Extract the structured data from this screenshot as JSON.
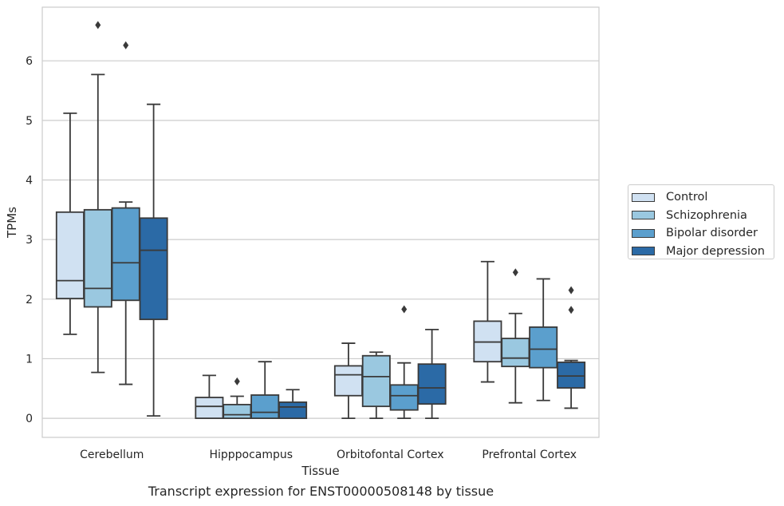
{
  "caption": "Transcript expression for ENST00000508148 by tissue",
  "chart_data": {
    "type": "box",
    "xlabel": "Tissue",
    "ylabel": "TPMs",
    "ylim": [
      -0.32,
      6.9
    ],
    "yticks": [
      0,
      1,
      2,
      3,
      4,
      5,
      6
    ],
    "grid": true,
    "legend_position": "right",
    "categories": [
      "Cerebellum",
      "Hipppocampus",
      "Orbitofontal Cortex",
      "Prefrontal Cortex"
    ],
    "series": [
      {
        "name": "Control",
        "color": "#d0e1f2",
        "boxes": [
          {
            "whislo": 1.41,
            "q1": 2.01,
            "med": 2.31,
            "q3": 3.46,
            "whishi": 5.12,
            "fliers": []
          },
          {
            "whislo": 0.0,
            "q1": 0.0,
            "med": 0.2,
            "q3": 0.35,
            "whishi": 0.72,
            "fliers": []
          },
          {
            "whislo": 0.0,
            "q1": 0.38,
            "med": 0.73,
            "q3": 0.88,
            "whishi": 1.26,
            "fliers": []
          },
          {
            "whislo": 0.61,
            "q1": 0.95,
            "med": 1.28,
            "q3": 1.63,
            "whishi": 2.63,
            "fliers": []
          }
        ]
      },
      {
        "name": "Schizophrenia",
        "color": "#9ac8e0",
        "boxes": [
          {
            "whislo": 0.77,
            "q1": 1.87,
            "med": 2.18,
            "q3": 3.5,
            "whishi": 5.77,
            "fliers": [
              6.6
            ]
          },
          {
            "whislo": 0.0,
            "q1": 0.0,
            "med": 0.06,
            "q3": 0.23,
            "whishi": 0.37,
            "fliers": [
              0.62
            ]
          },
          {
            "whislo": 0.0,
            "q1": 0.2,
            "med": 0.7,
            "q3": 1.05,
            "whishi": 1.11,
            "fliers": []
          },
          {
            "whislo": 0.26,
            "q1": 0.87,
            "med": 1.01,
            "q3": 1.34,
            "whishi": 1.76,
            "fliers": [
              2.45
            ]
          }
        ]
      },
      {
        "name": "Bipolar disorder",
        "color": "#5b9fcd",
        "boxes": [
          {
            "whislo": 0.57,
            "q1": 1.98,
            "med": 2.61,
            "q3": 3.53,
            "whishi": 3.63,
            "fliers": [
              6.26
            ]
          },
          {
            "whislo": 0.0,
            "q1": 0.0,
            "med": 0.1,
            "q3": 0.39,
            "whishi": 0.95,
            "fliers": []
          },
          {
            "whislo": 0.0,
            "q1": 0.14,
            "med": 0.38,
            "q3": 0.56,
            "whishi": 0.93,
            "fliers": [
              1.83
            ]
          },
          {
            "whislo": 0.3,
            "q1": 0.85,
            "med": 1.16,
            "q3": 1.53,
            "whishi": 2.34,
            "fliers": []
          }
        ]
      },
      {
        "name": "Major depression",
        "color": "#2b6aa6",
        "boxes": [
          {
            "whislo": 0.04,
            "q1": 1.66,
            "med": 2.82,
            "q3": 3.36,
            "whishi": 5.27,
            "fliers": []
          },
          {
            "whislo": 0.0,
            "q1": 0.0,
            "med": 0.19,
            "q3": 0.27,
            "whishi": 0.48,
            "fliers": []
          },
          {
            "whislo": 0.0,
            "q1": 0.24,
            "med": 0.51,
            "q3": 0.91,
            "whishi": 1.49,
            "fliers": []
          },
          {
            "whislo": 0.17,
            "q1": 0.51,
            "med": 0.71,
            "q3": 0.94,
            "whishi": 0.97,
            "fliers": [
              1.82,
              2.15
            ]
          }
        ]
      }
    ]
  }
}
